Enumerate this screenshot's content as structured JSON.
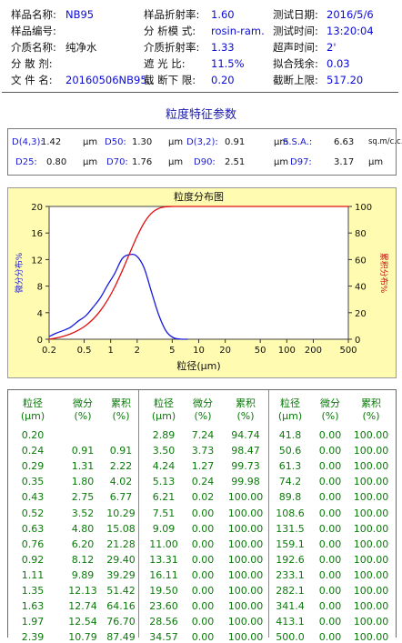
{
  "header": {
    "rows": [
      [
        {
          "label": "样品名称:",
          "value": "NB95"
        },
        {
          "label": "样品折射率:",
          "value": "1.60"
        },
        {
          "label": "测试日期:",
          "value": "2016/5/6"
        }
      ],
      [
        {
          "label": "样品编号:",
          "value": ""
        },
        {
          "label": "分 析模 式:",
          "value": "rosin-ram."
        },
        {
          "label": "测试时间:",
          "value": "13:20:04"
        }
      ],
      [
        {
          "label": "介质名称:",
          "value": "纯净水"
        },
        {
          "label": "介质折射率:",
          "value": "1.33"
        },
        {
          "label": "超声时间:",
          "value": "2'"
        }
      ],
      [
        {
          "label": "分  散  剂:",
          "value": ""
        },
        {
          "label": "遮   光   比:",
          "value": "11.5%"
        },
        {
          "label": "拟合残余:",
          "value": "0.03"
        }
      ],
      [
        {
          "label": "文  件  名:",
          "value": "20160506NB95.."
        },
        {
          "label": "截 断下 限:",
          "value": "0.20"
        },
        {
          "label": "截断上限:",
          "value": "517.20"
        }
      ]
    ]
  },
  "params": {
    "title": "粒度特征参数",
    "row1": [
      {
        "key": "D(4,3)",
        "value": "1.42",
        "unit": "μm"
      },
      {
        "key": "D50",
        "value": "1.30",
        "unit": "μm"
      },
      {
        "key": "D(3,2)",
        "value": "0.91",
        "unit": "μm"
      },
      {
        "key": "S.S.A.",
        "value": "6.63",
        "unit": "sq.m/c.c."
      }
    ],
    "row2": [
      {
        "key": "D25",
        "value": "0.80",
        "unit": "μm"
      },
      {
        "key": "D70",
        "value": "1.76",
        "unit": "μm"
      },
      {
        "key": "D90",
        "value": "2.51",
        "unit": "μm"
      },
      {
        "key": "D97",
        "value": "3.17",
        "unit": "μm"
      }
    ]
  },
  "colors": {
    "chart_bg": "#fffbb0",
    "plot_bg": "#ffffff",
    "diff_curve": "#1a1ae0",
    "cum_curve": "#e01010",
    "axis_left": "#1a1ae0",
    "axis_right": "#c01010",
    "table_text": "#0a7a0a",
    "header_value": "#0b0bd6"
  },
  "chart_data": {
    "type": "line",
    "title": "粒度分布图",
    "xlabel": "粒径(μm)",
    "ylabel_left": "微分分布%",
    "ylabel_right": "累积分布%",
    "x_scale": "log",
    "x_ticks": [
      "0.2",
      "0.5",
      "1",
      "2",
      "5",
      "10",
      "20",
      "50",
      "100",
      "200",
      "500"
    ],
    "x_tick_values": [
      0.2,
      0.5,
      1,
      2,
      5,
      10,
      20,
      50,
      100,
      200,
      500
    ],
    "y_left_ticks": [
      "0",
      "4",
      "8",
      "12",
      "16",
      "20"
    ],
    "y_right_ticks": [
      "0",
      "20",
      "40",
      "60",
      "80",
      "100"
    ],
    "y_left_range": [
      0,
      20
    ],
    "y_right_range": [
      0,
      100
    ],
    "xlim": [
      0.2,
      500
    ],
    "series": [
      {
        "name": "微分分布%",
        "axis": "left",
        "x": [
          0.2,
          0.24,
          0.29,
          0.35,
          0.43,
          0.52,
          0.63,
          0.76,
          0.92,
          1.11,
          1.35,
          1.63,
          1.97,
          2.39,
          2.89,
          3.5,
          4.24,
          5.13,
          6.21,
          7.51
        ],
        "y": [
          0.4,
          0.91,
          1.31,
          1.8,
          2.75,
          3.52,
          4.8,
          6.2,
          8.12,
          9.89,
          12.13,
          12.74,
          12.54,
          10.79,
          7.24,
          3.73,
          1.27,
          0.24,
          0.02,
          0
        ]
      },
      {
        "name": "累积分布%",
        "axis": "right",
        "x": [
          0.2,
          0.24,
          0.29,
          0.35,
          0.43,
          0.52,
          0.63,
          0.76,
          0.92,
          1.11,
          1.35,
          1.63,
          1.97,
          2.39,
          2.89,
          3.5,
          4.24,
          5.13,
          6.21,
          500
        ],
        "y": [
          0,
          0.91,
          2.22,
          4.02,
          6.77,
          10.29,
          15.08,
          21.28,
          29.4,
          39.29,
          51.42,
          64.16,
          76.7,
          87.49,
          94.74,
          98.47,
          99.73,
          99.98,
          100,
          100
        ]
      }
    ]
  },
  "table": {
    "headers": [
      {
        "name": "粒径",
        "unit": "(μm)"
      },
      {
        "name": "微分",
        "unit": "(%)"
      },
      {
        "name": "累积",
        "unit": "(%)"
      }
    ],
    "rows": [
      [
        "0.20",
        "",
        "",
        "2.89",
        "7.24",
        "94.74",
        "41.8",
        "0.00",
        "100.00"
      ],
      [
        "0.24",
        "0.91",
        "0.91",
        "3.50",
        "3.73",
        "98.47",
        "50.6",
        "0.00",
        "100.00"
      ],
      [
        "0.29",
        "1.31",
        "2.22",
        "4.24",
        "1.27",
        "99.73",
        "61.3",
        "0.00",
        "100.00"
      ],
      [
        "0.35",
        "1.80",
        "4.02",
        "5.13",
        "0.24",
        "99.98",
        "74.2",
        "0.00",
        "100.00"
      ],
      [
        "0.43",
        "2.75",
        "6.77",
        "6.21",
        "0.02",
        "100.00",
        "89.8",
        "0.00",
        "100.00"
      ],
      [
        "0.52",
        "3.52",
        "10.29",
        "7.51",
        "0.00",
        "100.00",
        "108.6",
        "0.00",
        "100.00"
      ],
      [
        "0.63",
        "4.80",
        "15.08",
        "9.09",
        "0.00",
        "100.00",
        "131.5",
        "0.00",
        "100.00"
      ],
      [
        "0.76",
        "6.20",
        "21.28",
        "11.00",
        "0.00",
        "100.00",
        "159.1",
        "0.00",
        "100.00"
      ],
      [
        "0.92",
        "8.12",
        "29.40",
        "13.31",
        "0.00",
        "100.00",
        "192.6",
        "0.00",
        "100.00"
      ],
      [
        "1.11",
        "9.89",
        "39.29",
        "16.11",
        "0.00",
        "100.00",
        "233.1",
        "0.00",
        "100.00"
      ],
      [
        "1.35",
        "12.13",
        "51.42",
        "19.50",
        "0.00",
        "100.00",
        "282.1",
        "0.00",
        "100.00"
      ],
      [
        "1.63",
        "12.74",
        "64.16",
        "23.60",
        "0.00",
        "100.00",
        "341.4",
        "0.00",
        "100.00"
      ],
      [
        "1.97",
        "12.54",
        "76.70",
        "28.56",
        "0.00",
        "100.00",
        "413.1",
        "0.00",
        "100.00"
      ],
      [
        "2.39",
        "10.79",
        "87.49",
        "34.57",
        "0.00",
        "100.00",
        "500.0",
        "0.00",
        "100.00"
      ]
    ]
  }
}
